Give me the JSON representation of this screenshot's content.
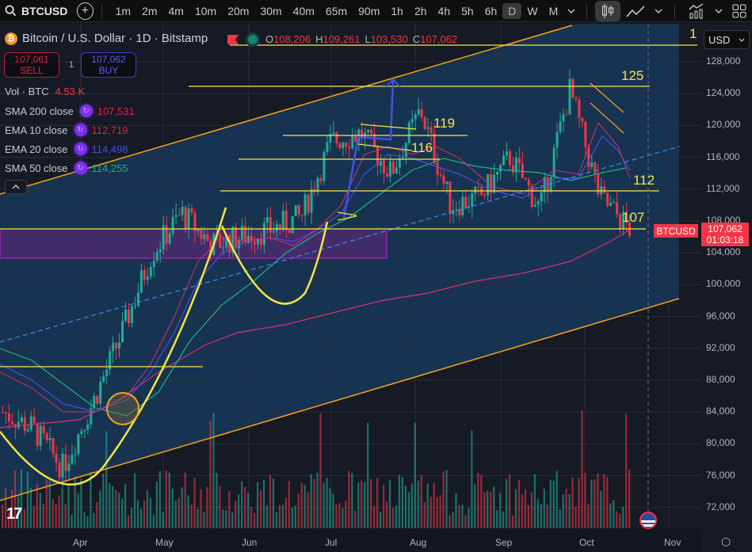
{
  "toolbar": {
    "symbol": "BTCUSD",
    "add_symbol_label": "+",
    "intervals": [
      "1m",
      "2m",
      "4m",
      "10m",
      "20m",
      "30m",
      "40m",
      "65m",
      "90m",
      "1h",
      "2h",
      "4h",
      "5h",
      "6h",
      "D",
      "W",
      "M"
    ],
    "active_interval": "D",
    "icons": [
      "search-icon",
      "add-icon",
      "chevron-down-icon",
      "candles-icon",
      "line-chart-icon",
      "chevron-down-icon",
      "indicators-icon",
      "chevron-down-icon",
      "layout-grid-icon"
    ]
  },
  "legend": {
    "title": "Bitcoin / U.S. Dollar · 1D · Bitstamp",
    "ohlc": {
      "o_label": "O",
      "o": "108,206",
      "h_label": "H",
      "h": "109,261",
      "l_label": "L",
      "l": "103,530",
      "c_label": "C",
      "c": "107,062"
    },
    "sell": {
      "price": "107,061",
      "label": "SELL"
    },
    "buy": {
      "price": "107,062",
      "label": "BUY"
    },
    "spread": "1",
    "volume": {
      "label": "Vol · BTC",
      "value": "4.53 K"
    },
    "indicators": [
      {
        "label": "SMA 200 close",
        "value": "107,531",
        "color": "#e0243f"
      },
      {
        "label": "EMA 10 close",
        "value": "112,719",
        "color": "#e0243f"
      },
      {
        "label": "EMA 20 close",
        "value": "114,498",
        "color": "#4a4fe0"
      },
      {
        "label": "SMA 50 close",
        "value": "114,255",
        "color": "#22b36b"
      }
    ],
    "collapse_label": "^"
  },
  "price_axis": {
    "currency": "USD",
    "ticks": [
      "128,000",
      "124,000",
      "120,000",
      "116,000",
      "112,000",
      "108,000",
      "104,000",
      "100,000",
      "96,000",
      "92,000",
      "88,000",
      "84,000",
      "80,000",
      "76,000",
      "72,000"
    ],
    "last_price": "107,062",
    "countdown": "01:03:18",
    "symbol_tag": "BTCUSD"
  },
  "time_axis": {
    "ticks": [
      "Apr",
      "May",
      "Jun",
      "Jul",
      "Aug",
      "Sep",
      "Oct",
      "Nov"
    ]
  },
  "annotations": [
    "1",
    "125",
    "119",
    "116",
    "112",
    "107"
  ],
  "colors": {
    "up": "#22ab94",
    "down": "#f23645",
    "channel": "#f7a21b",
    "levels": "#f5e646",
    "zone": "#9c27b0",
    "ema20": "#4a4fe0"
  },
  "chart_data": {
    "type": "candlestick",
    "title": "Bitcoin / U.S. Dollar · 1D · Bitstamp",
    "xlabel": "",
    "ylabel": "USD",
    "x_ticks": [
      "Apr",
      "May",
      "Jun",
      "Jul",
      "Aug",
      "Sep",
      "Oct",
      "Nov"
    ],
    "y_ticks": [
      72000,
      76000,
      80000,
      84000,
      88000,
      92000,
      96000,
      100000,
      104000,
      108000,
      112000,
      116000,
      120000,
      124000,
      128000
    ],
    "ylim": [
      69500,
      131000
    ],
    "grid": true,
    "last": {
      "open": 108206,
      "high": 109261,
      "low": 103530,
      "close": 107062
    },
    "approx_close_path": [
      {
        "x": "Mar",
        "y": 84000
      },
      {
        "x": "Apr-early",
        "y": 82000
      },
      {
        "x": "Apr-mid",
        "y": 77000
      },
      {
        "x": "Apr-late",
        "y": 85000
      },
      {
        "x": "May-early",
        "y": 94000
      },
      {
        "x": "May-mid",
        "y": 104000
      },
      {
        "x": "May-late",
        "y": 109000
      },
      {
        "x": "Jun-early",
        "y": 105000
      },
      {
        "x": "Jun-mid",
        "y": 106000
      },
      {
        "x": "Jun-late",
        "y": 107000
      },
      {
        "x": "Jul-early",
        "y": 108500
      },
      {
        "x": "Jul-mid",
        "y": 118000
      },
      {
        "x": "Jul-late",
        "y": 119000
      },
      {
        "x": "Aug-early",
        "y": 114000
      },
      {
        "x": "Aug-mid",
        "y": 122000
      },
      {
        "x": "Aug-late",
        "y": 110000
      },
      {
        "x": "Sep-early",
        "y": 111000
      },
      {
        "x": "Sep-mid",
        "y": 116000
      },
      {
        "x": "Sep-late",
        "y": 109500
      },
      {
        "x": "Oct-early",
        "y": 124500
      },
      {
        "x": "Oct-mid",
        "y": 111000
      },
      {
        "x": "Oct-latest",
        "y": 107062
      }
    ],
    "indicators": [
      {
        "name": "SMA 200 close",
        "last": 107531
      },
      {
        "name": "EMA 10 close",
        "last": 112719
      },
      {
        "name": "EMA 20 close",
        "last": 114498
      },
      {
        "name": "SMA 50 close",
        "last": 114255
      }
    ],
    "horizontal_levels": [
      {
        "label": "125",
        "value": 125000
      },
      {
        "label": "119",
        "value": 119300
      },
      {
        "label": "116",
        "value": 116200
      },
      {
        "label": "112",
        "value": 112000
      },
      {
        "label": "107",
        "value": 107200
      },
      {
        "label": "",
        "value": 90200
      }
    ],
    "zones": [
      {
        "from": 104000,
        "to": 107500,
        "color": "#9c27b0"
      }
    ],
    "channel": {
      "upper": "rising from ~110,000 (Mar) to ~132,000 (Oct)",
      "lower": "rising from ~72,000 (Mar) to ~98,000 (Oct)"
    },
    "patterns": [
      "cup (Apr–May)",
      "cup (May–Jul)",
      "bull flag (Jul)",
      "bull flag (Oct)"
    ],
    "volume": {
      "label": "Vol · BTC",
      "last": "4.53 K"
    }
  }
}
